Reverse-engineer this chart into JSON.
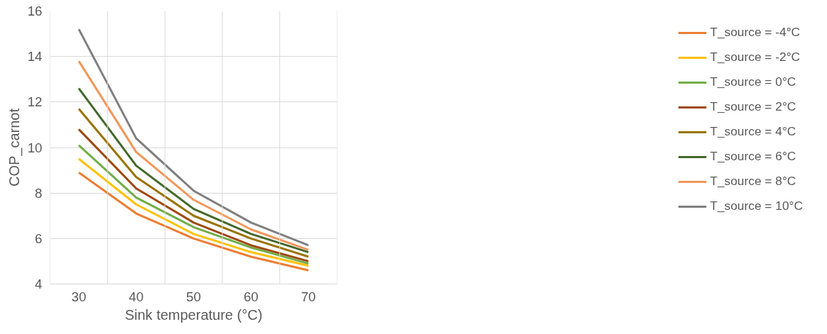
{
  "chart_data": {
    "type": "line",
    "xlabel": "Sink temperature (°C)",
    "ylabel": "COP_carnot",
    "categories": [
      "30",
      "40",
      "50",
      "60",
      "70"
    ],
    "series": [
      {
        "name": "T_source = -4°C",
        "color": "#ed7d31",
        "values": [
          8.9,
          7.1,
          6.0,
          5.2,
          4.6
        ]
      },
      {
        "name": "T_source = -2°C",
        "color": "#ffc000",
        "values": [
          9.5,
          7.5,
          6.2,
          5.4,
          4.8
        ]
      },
      {
        "name": "T_source = 0°C",
        "color": "#70ad47",
        "values": [
          10.1,
          7.8,
          6.5,
          5.6,
          4.9
        ]
      },
      {
        "name": "T_source = 2°C",
        "color": "#9e480e",
        "values": [
          10.8,
          8.2,
          6.7,
          5.7,
          5.0
        ]
      },
      {
        "name": "T_source = 4°C",
        "color": "#997300",
        "values": [
          11.7,
          8.7,
          7.0,
          6.0,
          5.2
        ]
      },
      {
        "name": "T_source = 6°C",
        "color": "#43682b",
        "values": [
          12.6,
          9.2,
          7.3,
          6.2,
          5.4
        ]
      },
      {
        "name": "T_source = 8°C",
        "color": "#f1975a",
        "values": [
          13.8,
          9.8,
          7.7,
          6.4,
          5.5
        ]
      },
      {
        "name": "T_source = 10°C",
        "color": "#7f7f7f",
        "values": [
          15.2,
          10.4,
          8.1,
          6.7,
          5.7
        ]
      }
    ],
    "ylim": [
      4,
      16
    ],
    "yticks": [
      4,
      6,
      8,
      10,
      12,
      14,
      16
    ],
    "grid": true,
    "legend": "right",
    "marker": "none",
    "line_style": "solid"
  }
}
